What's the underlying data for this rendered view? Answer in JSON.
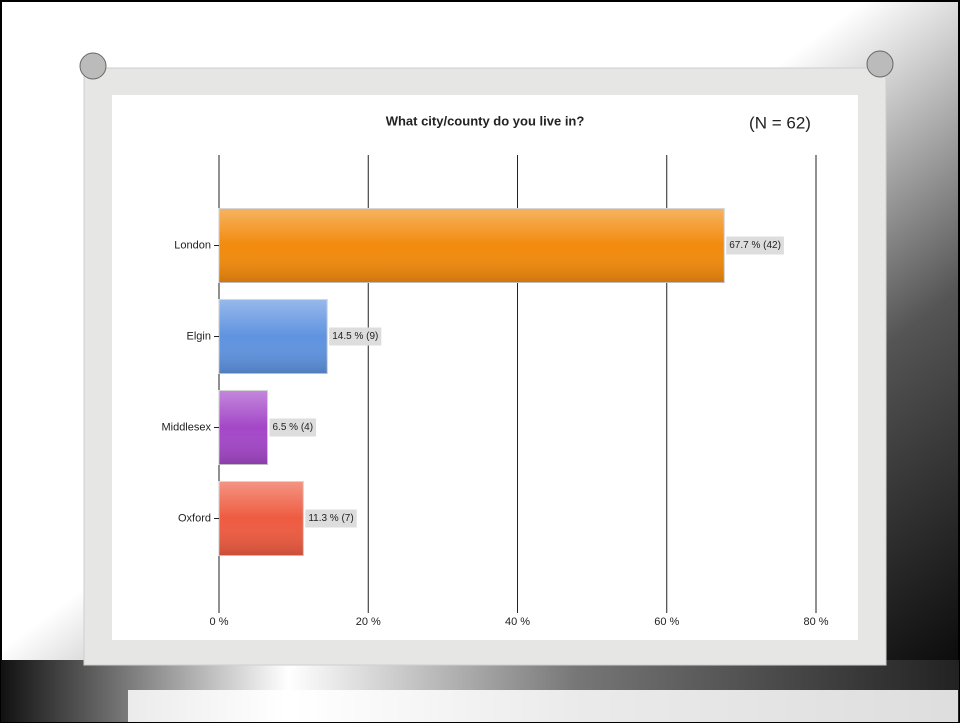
{
  "chart_data": {
    "type": "hbar",
    "title": "What city/county do you live in?",
    "annotation": "(N = 62)",
    "categories": [
      "London",
      "Elgin",
      "Middlesex",
      "Oxford"
    ],
    "values": [
      67.7,
      14.5,
      6.5,
      11.3
    ],
    "value_labels": [
      "67.7 % (42)",
      "14.5 % (9)",
      "6.5 % (4)",
      "11.3 % (7)"
    ],
    "colors": [
      "#f28a0c",
      "#5f93e0",
      "#a447c8",
      "#ee5b40"
    ],
    "xlim": [
      0,
      80
    ],
    "xticks": [
      {
        "value": 0,
        "label": "0 %"
      },
      {
        "value": 20,
        "label": "20 %"
      },
      {
        "value": 40,
        "label": "40 %"
      },
      {
        "value": 60,
        "label": "60 %"
      },
      {
        "value": 80,
        "label": "80 %"
      }
    ],
    "grid": true
  }
}
